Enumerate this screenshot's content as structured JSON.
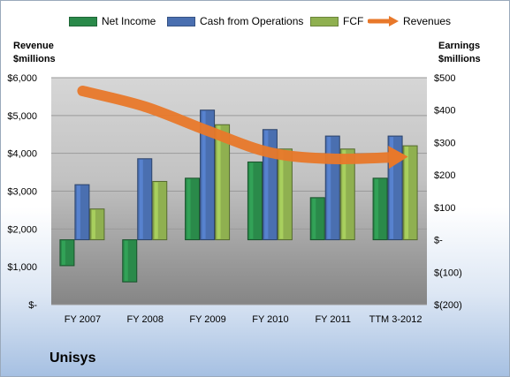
{
  "company": "Unisys",
  "colors": {
    "net_income": "#2a8a4a",
    "cash_from_operations": "#4a6fb0",
    "fcf": "#8fb050",
    "revenues": "#e8782a"
  },
  "legend": [
    {
      "key": "net_income",
      "label": "Net Income",
      "icon": "bar-swatch"
    },
    {
      "key": "cash_from_operations",
      "label": "Cash from Operations",
      "icon": "bar-swatch"
    },
    {
      "key": "fcf",
      "label": "FCF",
      "icon": "bar-swatch"
    },
    {
      "key": "revenues",
      "label": "Revenues",
      "icon": "arrow-swatch"
    }
  ],
  "chart_data": {
    "type": "bar",
    "categories": [
      "FY 2007",
      "FY 2008",
      "FY 2009",
      "FY 2010",
      "FY 2011",
      "TTM 3-2012"
    ],
    "left_axis": {
      "title_line1": "Revenue",
      "title_line2": "$millions",
      "ylim": [
        0,
        6000
      ],
      "ticks": [
        0,
        1000,
        2000,
        3000,
        4000,
        5000,
        6000
      ],
      "tick_labels": [
        "$-",
        "$1,000",
        "$2,000",
        "$3,000",
        "$4,000",
        "$5,000",
        "$6,000"
      ]
    },
    "right_axis": {
      "title_line1": "Earnings",
      "title_line2": "$millions",
      "ylim": [
        -200,
        500
      ],
      "ticks": [
        -200,
        -100,
        0,
        100,
        200,
        300,
        400,
        500
      ],
      "tick_labels": [
        "$(200)",
        "$(100)",
        "$-",
        "$100",
        "$200",
        "$300",
        "$400",
        "$500"
      ]
    },
    "grid": true,
    "legend_position": "top",
    "series": [
      {
        "name": "Net Income",
        "key": "net_income",
        "axis": "right",
        "values": [
          -80,
          -130,
          190,
          240,
          130,
          190
        ]
      },
      {
        "name": "Cash from Operations",
        "key": "cash_from_operations",
        "axis": "right",
        "values": [
          170,
          250,
          400,
          340,
          320,
          320
        ]
      },
      {
        "name": "FCF",
        "key": "fcf",
        "axis": "right",
        "values": [
          95,
          180,
          355,
          280,
          280,
          290
        ]
      },
      {
        "name": "Revenues",
        "key": "revenues",
        "axis": "left",
        "values": [
          5650,
          5233,
          4597,
          4020,
          3854,
          3900
        ]
      }
    ]
  }
}
